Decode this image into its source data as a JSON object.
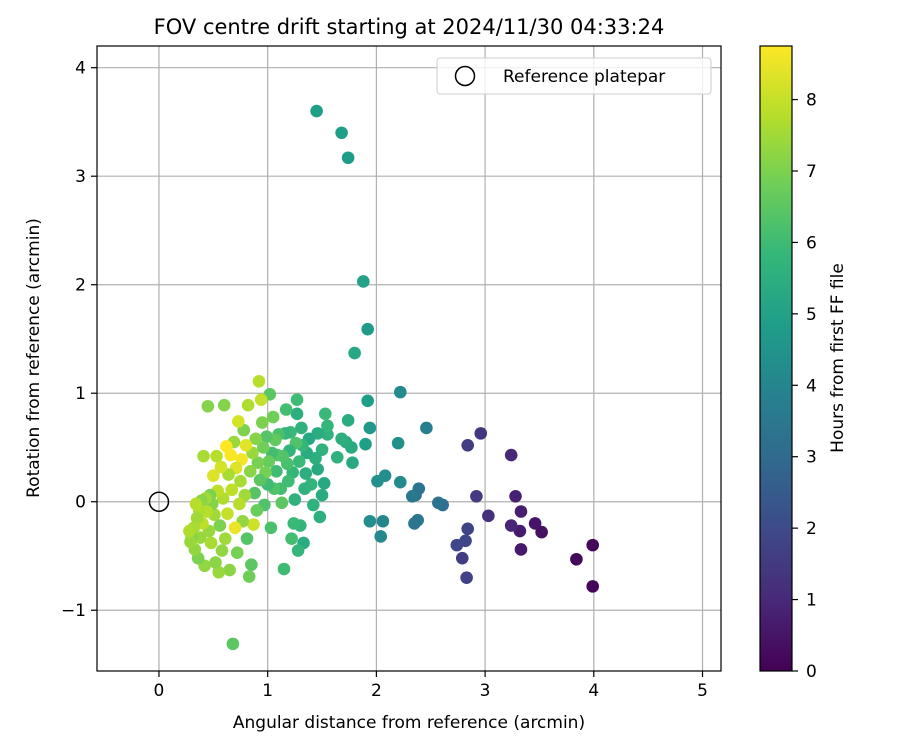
{
  "chart_data": {
    "type": "scatter",
    "title": "FOV centre drift starting at 2024/11/30 04:33:24",
    "xlabel": "Angular distance from reference (arcmin)",
    "ylabel": "Rotation from reference (arcmin)",
    "xlim": [
      -0.57,
      5.17
    ],
    "ylim": [
      -1.56,
      4.2
    ],
    "x_ticks": [
      0,
      1,
      2,
      3,
      4,
      5
    ],
    "y_ticks": [
      -1,
      0,
      1,
      2,
      3,
      4
    ],
    "x_tick_labels": [
      "0",
      "1",
      "2",
      "3",
      "4",
      "5"
    ],
    "y_tick_labels": [
      "−1",
      "0",
      "1",
      "2",
      "3",
      "4"
    ],
    "grid": true,
    "legend": {
      "label": "Reference platepar",
      "placement": "top-right"
    },
    "reference_point": {
      "x": 0,
      "y": 0
    },
    "colorbar": {
      "label": "Hours from first FF file",
      "range": [
        0,
        8.75
      ],
      "ticks": [
        0,
        1,
        2,
        3,
        4,
        5,
        6,
        7,
        8
      ],
      "tick_labels": [
        "0",
        "1",
        "2",
        "3",
        "4",
        "5",
        "6",
        "7",
        "8"
      ],
      "colormap_stops": [
        "#440154",
        "#482878",
        "#3e4989",
        "#31688e",
        "#26828e",
        "#1f9e89",
        "#35b779",
        "#6ece58",
        "#b5de2b",
        "#fde725"
      ]
    },
    "points": [
      {
        "x": 3.99,
        "y": -0.78,
        "t": 0.1
      },
      {
        "x": 3.99,
        "y": -0.4,
        "t": 0.15
      },
      {
        "x": 3.84,
        "y": -0.53,
        "t": 0.2
      },
      {
        "x": 3.52,
        "y": -0.28,
        "t": 0.4
      },
      {
        "x": 3.46,
        "y": -0.2,
        "t": 0.5
      },
      {
        "x": 3.33,
        "y": -0.44,
        "t": 0.6
      },
      {
        "x": 3.32,
        "y": -0.27,
        "t": 0.65
      },
      {
        "x": 3.33,
        "y": -0.09,
        "t": 0.7
      },
      {
        "x": 3.28,
        "y": 0.05,
        "t": 0.8
      },
      {
        "x": 3.24,
        "y": -0.22,
        "t": 0.9
      },
      {
        "x": 3.24,
        "y": 0.43,
        "t": 1.0
      },
      {
        "x": 3.03,
        "y": -0.13,
        "t": 1.2
      },
      {
        "x": 2.96,
        "y": 0.63,
        "t": 1.4
      },
      {
        "x": 2.92,
        "y": 0.05,
        "t": 1.5
      },
      {
        "x": 2.84,
        "y": 0.52,
        "t": 1.6
      },
      {
        "x": 2.84,
        "y": -0.25,
        "t": 1.8
      },
      {
        "x": 2.82,
        "y": -0.36,
        "t": 1.9
      },
      {
        "x": 2.83,
        "y": -0.7,
        "t": 1.7
      },
      {
        "x": 2.79,
        "y": -0.52,
        "t": 1.6
      },
      {
        "x": 2.74,
        "y": -0.4,
        "t": 1.9
      },
      {
        "x": 2.61,
        "y": -0.03,
        "t": 3.2
      },
      {
        "x": 2.57,
        "y": -0.01,
        "t": 3.3
      },
      {
        "x": 2.46,
        "y": 0.68,
        "t": 3.7
      },
      {
        "x": 2.39,
        "y": 0.12,
        "t": 3.4
      },
      {
        "x": 2.38,
        "y": -0.17,
        "t": 3.5
      },
      {
        "x": 2.36,
        "y": 0.06,
        "t": 3.3
      },
      {
        "x": 2.35,
        "y": -0.2,
        "t": 3.4
      },
      {
        "x": 2.33,
        "y": 0.05,
        "t": 3.5
      },
      {
        "x": 2.22,
        "y": 1.01,
        "t": 4.2
      },
      {
        "x": 2.22,
        "y": 0.18,
        "t": 4.2
      },
      {
        "x": 2.2,
        "y": 0.54,
        "t": 4.4
      },
      {
        "x": 2.08,
        "y": 0.24,
        "t": 4.3
      },
      {
        "x": 2.06,
        "y": -0.18,
        "t": 4.0
      },
      {
        "x": 2.04,
        "y": -0.32,
        "t": 4.1
      },
      {
        "x": 2.01,
        "y": 0.19,
        "t": 4.4
      },
      {
        "x": 1.94,
        "y": -0.18,
        "t": 4.3
      },
      {
        "x": 1.94,
        "y": 0.68,
        "t": 4.7
      },
      {
        "x": 1.92,
        "y": 1.59,
        "t": 4.8
      },
      {
        "x": 1.92,
        "y": 0.93,
        "t": 4.9
      },
      {
        "x": 1.9,
        "y": 0.53,
        "t": 4.9
      },
      {
        "x": 1.88,
        "y": 2.03,
        "t": 5.0
      },
      {
        "x": 1.8,
        "y": 1.37,
        "t": 5.2
      },
      {
        "x": 1.78,
        "y": 0.36,
        "t": 5.3
      },
      {
        "x": 1.77,
        "y": 0.5,
        "t": 5.3
      },
      {
        "x": 1.74,
        "y": 0.75,
        "t": 5.4
      },
      {
        "x": 1.72,
        "y": 0.55,
        "t": 5.4
      },
      {
        "x": 1.68,
        "y": 0.58,
        "t": 5.5
      },
      {
        "x": 1.64,
        "y": 0.41,
        "t": 5.6
      },
      {
        "x": 1.74,
        "y": 3.17,
        "t": 4.8
      },
      {
        "x": 1.68,
        "y": 3.4,
        "t": 4.9
      },
      {
        "x": 1.45,
        "y": 3.6,
        "t": 4.9
      },
      {
        "x": 1.55,
        "y": 0.62,
        "t": 5.6
      },
      {
        "x": 1.55,
        "y": 0.7,
        "t": 5.8
      },
      {
        "x": 1.53,
        "y": 0.81,
        "t": 5.9
      },
      {
        "x": 1.52,
        "y": 0.17,
        "t": 5.2
      },
      {
        "x": 1.5,
        "y": 0.48,
        "t": 5.6
      },
      {
        "x": 1.5,
        "y": 0.06,
        "t": 5.4
      },
      {
        "x": 1.48,
        "y": -0.14,
        "t": 5.5
      },
      {
        "x": 1.46,
        "y": 0.3,
        "t": 5.3
      },
      {
        "x": 1.46,
        "y": 0.63,
        "t": 5.4
      },
      {
        "x": 1.44,
        "y": 0.4,
        "t": 5.5
      },
      {
        "x": 1.42,
        "y": -0.03,
        "t": 5.6
      },
      {
        "x": 1.4,
        "y": 0.16,
        "t": 5.7
      },
      {
        "x": 1.38,
        "y": 0.58,
        "t": 5.2
      },
      {
        "x": 1.36,
        "y": 0.45,
        "t": 5.4
      },
      {
        "x": 1.35,
        "y": 0.26,
        "t": 5.5
      },
      {
        "x": 1.34,
        "y": 0.12,
        "t": 5.6
      },
      {
        "x": 1.33,
        "y": -0.38,
        "t": 5.4
      },
      {
        "x": 1.32,
        "y": 0.52,
        "t": 5.8
      },
      {
        "x": 1.31,
        "y": 0.68,
        "t": 5.6
      },
      {
        "x": 1.3,
        "y": -0.22,
        "t": 5.7
      },
      {
        "x": 1.29,
        "y": 0.37,
        "t": 5.9
      },
      {
        "x": 1.28,
        "y": -0.45,
        "t": 5.8
      },
      {
        "x": 1.27,
        "y": 0.81,
        "t": 5.5
      },
      {
        "x": 1.27,
        "y": 0.94,
        "t": 6.0
      },
      {
        "x": 1.26,
        "y": 0.54,
        "t": 6.3
      },
      {
        "x": 1.25,
        "y": 0.02,
        "t": 5.6
      },
      {
        "x": 1.24,
        "y": -0.2,
        "t": 5.9
      },
      {
        "x": 1.23,
        "y": 0.27,
        "t": 5.8
      },
      {
        "x": 1.22,
        "y": -0.34,
        "t": 6.1
      },
      {
        "x": 1.21,
        "y": 0.64,
        "t": 5.9
      },
      {
        "x": 1.2,
        "y": 0.47,
        "t": 5.7
      },
      {
        "x": 1.19,
        "y": 0.19,
        "t": 6.0
      },
      {
        "x": 1.18,
        "y": 0.35,
        "t": 6.2
      },
      {
        "x": 1.17,
        "y": 0.85,
        "t": 6.1
      },
      {
        "x": 1.16,
        "y": 0.63,
        "t": 5.8
      },
      {
        "x": 1.15,
        "y": -0.62,
        "t": 6.0
      },
      {
        "x": 1.14,
        "y": 0.42,
        "t": 6.3
      },
      {
        "x": 1.13,
        "y": -0.01,
        "t": 6.5
      },
      {
        "x": 1.12,
        "y": 0.12,
        "t": 6.1
      },
      {
        "x": 1.1,
        "y": 0.62,
        "t": 6.2
      },
      {
        "x": 1.09,
        "y": 0.43,
        "t": 6.4
      },
      {
        "x": 1.08,
        "y": 0.28,
        "t": 6.0
      },
      {
        "x": 1.07,
        "y": 0.57,
        "t": 6.6
      },
      {
        "x": 1.06,
        "y": 0.12,
        "t": 6.3
      },
      {
        "x": 1.05,
        "y": 0.78,
        "t": 6.8
      },
      {
        "x": 1.04,
        "y": 0.45,
        "t": 6.1
      },
      {
        "x": 1.03,
        "y": -0.24,
        "t": 6.2
      },
      {
        "x": 1.02,
        "y": 0.99,
        "t": 6.5
      },
      {
        "x": 1.01,
        "y": 0.37,
        "t": 6.7
      },
      {
        "x": 1.0,
        "y": 0.16,
        "t": 6.0
      },
      {
        "x": 0.99,
        "y": 0.6,
        "t": 6.4
      },
      {
        "x": 0.98,
        "y": 0.27,
        "t": 6.9
      },
      {
        "x": 0.97,
        "y": -0.03,
        "t": 6.3
      },
      {
        "x": 0.96,
        "y": 0.5,
        "t": 6.8
      },
      {
        "x": 0.95,
        "y": 0.73,
        "t": 7.0
      },
      {
        "x": 0.94,
        "y": 0.94,
        "t": 8.0
      },
      {
        "x": 0.93,
        "y": 0.2,
        "t": 6.5
      },
      {
        "x": 0.92,
        "y": 1.11,
        "t": 7.8
      },
      {
        "x": 0.91,
        "y": 0.36,
        "t": 6.9
      },
      {
        "x": 0.9,
        "y": -0.08,
        "t": 6.7
      },
      {
        "x": 0.89,
        "y": 0.58,
        "t": 7.1
      },
      {
        "x": 0.88,
        "y": 0.08,
        "t": 6.4
      },
      {
        "x": 0.87,
        "y": -0.21,
        "t": 8.1
      },
      {
        "x": 0.86,
        "y": 0.45,
        "t": 7.4
      },
      {
        "x": 0.85,
        "y": -0.58,
        "t": 6.5
      },
      {
        "x": 0.84,
        "y": 0.28,
        "t": 7.2
      },
      {
        "x": 0.83,
        "y": -0.69,
        "t": 6.8
      },
      {
        "x": 0.82,
        "y": 0.89,
        "t": 7.7
      },
      {
        "x": 0.81,
        "y": -0.34,
        "t": 6.4
      },
      {
        "x": 0.8,
        "y": 0.52,
        "t": 8.4
      },
      {
        "x": 0.79,
        "y": 0.06,
        "t": 7.5
      },
      {
        "x": 0.78,
        "y": 0.66,
        "t": 7.0
      },
      {
        "x": 0.77,
        "y": -0.18,
        "t": 7.3
      },
      {
        "x": 0.76,
        "y": 0.39,
        "t": 8.6
      },
      {
        "x": 0.75,
        "y": 0.19,
        "t": 7.6
      },
      {
        "x": 0.74,
        "y": -0.02,
        "t": 7.8
      },
      {
        "x": 0.73,
        "y": 0.74,
        "t": 8.2
      },
      {
        "x": 0.72,
        "y": -0.47,
        "t": 6.9
      },
      {
        "x": 0.71,
        "y": 0.31,
        "t": 8.3
      },
      {
        "x": 0.7,
        "y": -0.24,
        "t": 8.5
      },
      {
        "x": 0.69,
        "y": 0.55,
        "t": 7.4
      },
      {
        "x": 0.68,
        "y": -1.31,
        "t": 6.5
      },
      {
        "x": 0.67,
        "y": 0.11,
        "t": 7.9
      },
      {
        "x": 0.66,
        "y": 0.43,
        "t": 8.7
      },
      {
        "x": 0.65,
        "y": -0.63,
        "t": 7.2
      },
      {
        "x": 0.64,
        "y": 0.25,
        "t": 7.6
      },
      {
        "x": 0.63,
        "y": -0.11,
        "t": 8.0
      },
      {
        "x": 0.62,
        "y": 0.51,
        "t": 8.8
      },
      {
        "x": 0.61,
        "y": -0.34,
        "t": 7.5
      },
      {
        "x": 0.6,
        "y": 0.89,
        "t": 7.1
      },
      {
        "x": 0.59,
        "y": 0.03,
        "t": 7.7
      },
      {
        "x": 0.58,
        "y": -0.45,
        "t": 7.3
      },
      {
        "x": 0.57,
        "y": 0.32,
        "t": 8.2
      },
      {
        "x": 0.56,
        "y": -0.22,
        "t": 7.0
      },
      {
        "x": 0.55,
        "y": -0.65,
        "t": 7.4
      },
      {
        "x": 0.54,
        "y": 0.1,
        "t": 7.9
      },
      {
        "x": 0.53,
        "y": 0.42,
        "t": 7.8
      },
      {
        "x": 0.52,
        "y": -0.56,
        "t": 7.2
      },
      {
        "x": 0.51,
        "y": -0.12,
        "t": 7.5
      },
      {
        "x": 0.5,
        "y": 0.24,
        "t": 8.3
      },
      {
        "x": 0.49,
        "y": -0.02,
        "t": 7.1
      },
      {
        "x": 0.48,
        "y": -0.38,
        "t": 7.6
      },
      {
        "x": 0.47,
        "y": 0.06,
        "t": 7.0
      },
      {
        "x": 0.46,
        "y": -0.27,
        "t": 7.4
      },
      {
        "x": 0.45,
        "y": 0.88,
        "t": 7.1
      },
      {
        "x": 0.44,
        "y": -0.09,
        "t": 7.8
      },
      {
        "x": 0.43,
        "y": 0.03,
        "t": 7.5
      },
      {
        "x": 0.42,
        "y": -0.59,
        "t": 7.3
      },
      {
        "x": 0.41,
        "y": 0.42,
        "t": 7.6
      },
      {
        "x": 0.4,
        "y": -0.2,
        "t": 7.9
      },
      {
        "x": 0.39,
        "y": 0.01,
        "t": 7.2
      },
      {
        "x": 0.38,
        "y": -0.33,
        "t": 7.4
      },
      {
        "x": 0.37,
        "y": -0.08,
        "t": 7.7
      },
      {
        "x": 0.36,
        "y": -0.52,
        "t": 7.0
      },
      {
        "x": 0.35,
        "y": -0.15,
        "t": 7.5
      },
      {
        "x": 0.34,
        "y": -0.02,
        "t": 7.8
      },
      {
        "x": 0.33,
        "y": -0.44,
        "t": 7.3
      },
      {
        "x": 0.32,
        "y": -0.24,
        "t": 7.6
      },
      {
        "x": 0.3,
        "y": -0.33,
        "t": 7.1
      },
      {
        "x": 0.29,
        "y": -0.37,
        "t": 7.4
      },
      {
        "x": 0.28,
        "y": -0.27,
        "t": 7.7
      }
    ]
  }
}
